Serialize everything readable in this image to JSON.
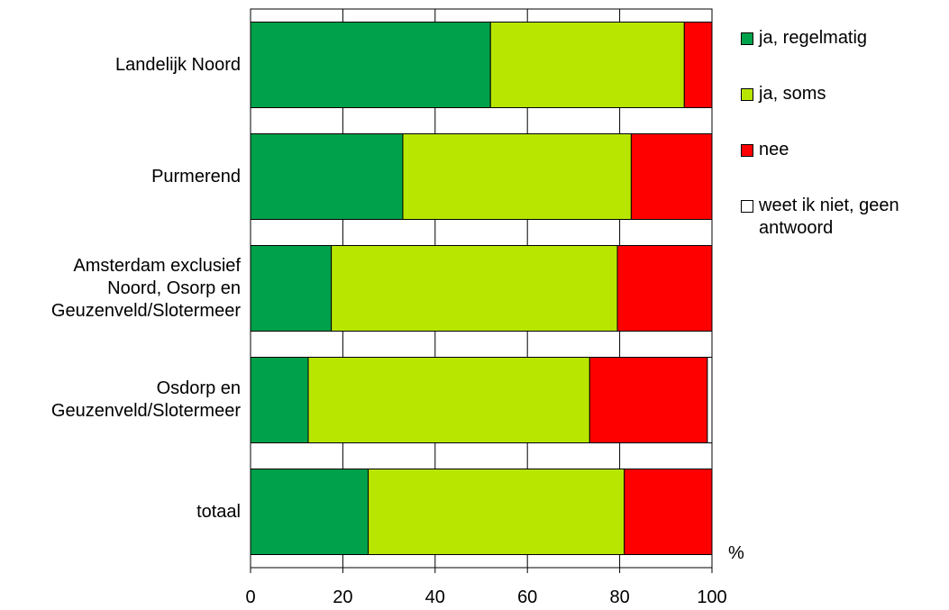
{
  "chart_data": {
    "type": "bar",
    "orientation": "horizontal",
    "stacked": true,
    "categories": [
      "Landelijk Noord",
      "Purmerend",
      "Amsterdam exclusief\nNoord, Osorp en\nGeuzenveld/Slotermeer",
      "Osdorp en\nGeuzenveld/Slotermeer",
      "totaal"
    ],
    "series": [
      {
        "name": "ja, regelmatig",
        "color": "#00a14b",
        "values": [
          52,
          33,
          17.5,
          12.5,
          25.5
        ]
      },
      {
        "name": "ja, soms",
        "color": "#b9e600",
        "values": [
          42,
          49.5,
          62,
          61,
          55.5
        ]
      },
      {
        "name": "nee",
        "color": "#ff0000",
        "values": [
          6,
          17.5,
          20.5,
          25.5,
          19
        ]
      },
      {
        "name": "weet ik niet, geen\nantwoord",
        "color": "#ffffff",
        "values": [
          0,
          0,
          0,
          1,
          0
        ]
      }
    ],
    "xlim": [
      0,
      100
    ],
    "xticks": [
      "0",
      "20",
      "40",
      "60",
      "80",
      "100"
    ],
    "xticks_values": [
      0,
      20,
      40,
      60,
      80,
      100
    ],
    "unit": "%",
    "grid": true,
    "legend": "right"
  }
}
